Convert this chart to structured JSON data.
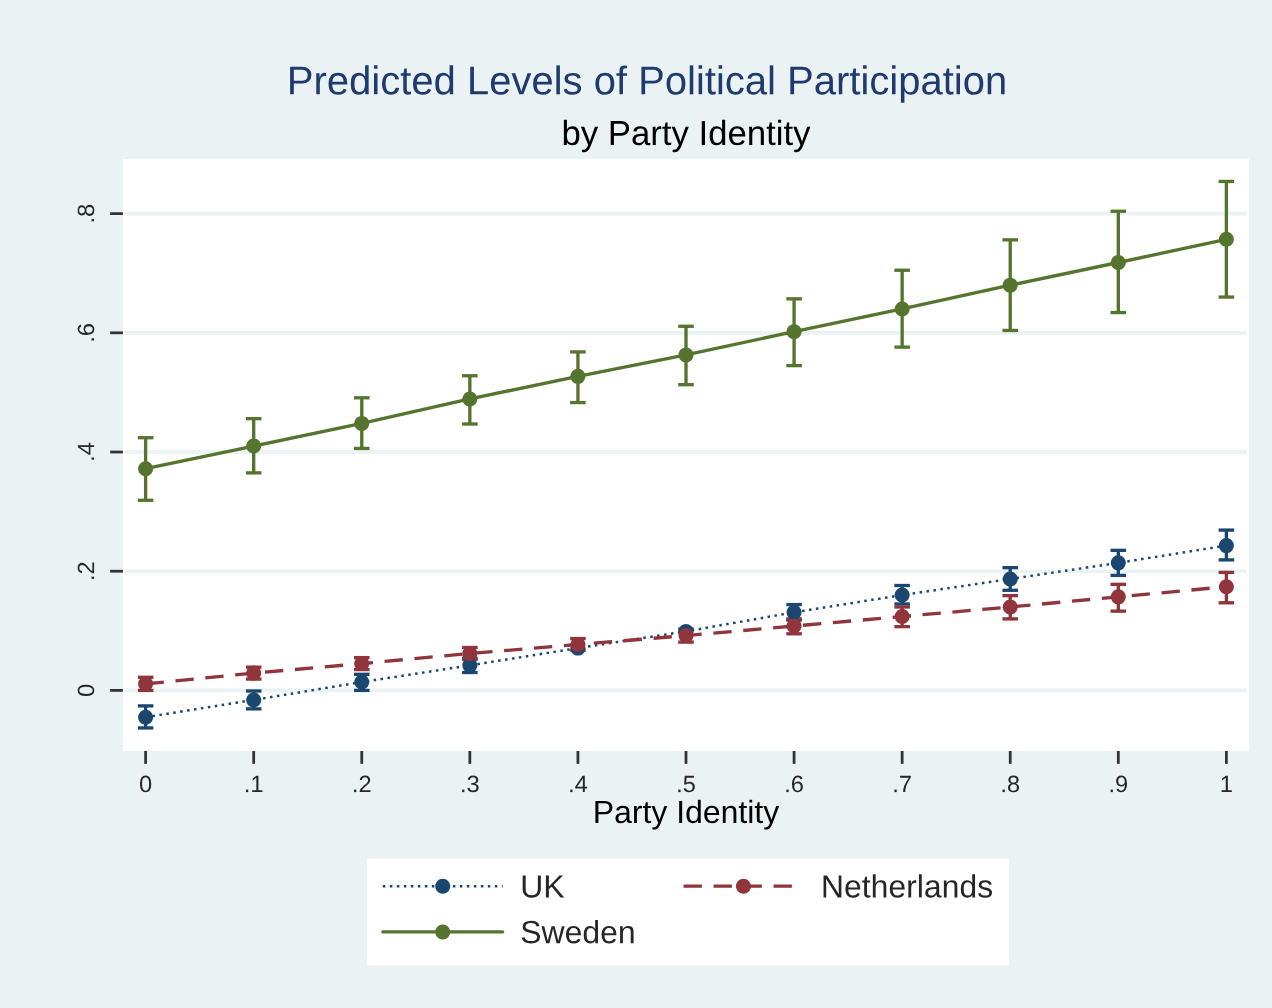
{
  "chart_data": {
    "type": "line",
    "title": "Predicted Levels of Political Participation",
    "subtitle": "by Party Identity",
    "xlabel": "Party Identity",
    "x": [
      0,
      0.1,
      0.2,
      0.3,
      0.4,
      0.5,
      0.6,
      0.7,
      0.8,
      0.9,
      1
    ],
    "series": [
      {
        "name": "UK",
        "color": "#1a476f",
        "line_style": "dotted",
        "values": [
          -0.045,
          -0.016,
          0.014,
          0.042,
          0.071,
          0.099,
          0.131,
          0.16,
          0.187,
          0.214,
          0.243
        ],
        "errors": [
          [
            -0.063,
            -0.026
          ],
          [
            -0.031,
            -0.001
          ],
          [
            0.0,
            0.027
          ],
          [
            0.03,
            0.054
          ],
          null,
          null,
          [
            0.118,
            0.144
          ],
          [
            0.145,
            0.176
          ],
          [
            0.168,
            0.206
          ],
          [
            0.193,
            0.235
          ],
          [
            0.219,
            0.269
          ]
        ]
      },
      {
        "name": "Netherlands",
        "color": "#90353b",
        "line_style": "dashed",
        "values": [
          0.011,
          0.029,
          0.045,
          0.062,
          0.077,
          0.092,
          0.108,
          0.124,
          0.14,
          0.157,
          0.174
        ],
        "errors": [
          [
            0.0,
            0.022
          ],
          [
            0.019,
            0.039
          ],
          [
            0.035,
            0.055
          ],
          [
            0.052,
            0.072
          ],
          [
            0.067,
            0.087
          ],
          [
            0.081,
            0.103
          ],
          [
            0.095,
            0.12
          ],
          [
            0.107,
            0.14
          ],
          [
            0.12,
            0.159
          ],
          [
            0.133,
            0.178
          ],
          [
            0.147,
            0.198
          ]
        ]
      },
      {
        "name": "Sweden",
        "color": "#55752f",
        "line_style": "solid",
        "values": [
          0.372,
          0.41,
          0.448,
          0.489,
          0.527,
          0.563,
          0.602,
          0.64,
          0.68,
          0.718,
          0.757
        ],
        "errors": [
          [
            0.319,
            0.424
          ],
          [
            0.365,
            0.456
          ],
          [
            0.406,
            0.491
          ],
          [
            0.447,
            0.528
          ],
          [
            0.483,
            0.568
          ],
          [
            0.513,
            0.611
          ],
          [
            0.545,
            0.657
          ],
          [
            0.576,
            0.705
          ],
          [
            0.604,
            0.756
          ],
          [
            0.634,
            0.804
          ],
          [
            0.66,
            0.854
          ]
        ]
      }
    ],
    "marker": "circle",
    "xlim": [
      -0.02,
      1.02
    ],
    "xticks": [
      0,
      {
        "value": 0.1,
        "label": ".1"
      },
      {
        "value": 0.2,
        "label": ".2"
      },
      {
        "value": 0.3,
        "label": ".3"
      },
      {
        "value": 0.4,
        "label": ".4"
      },
      {
        "value": 0.5,
        "label": ".5"
      },
      {
        "value": 0.6,
        "label": ".6"
      },
      {
        "value": 0.7,
        "label": ".7"
      },
      {
        "value": 0.8,
        "label": ".8"
      },
      {
        "value": 0.9,
        "label": ".9"
      },
      1
    ],
    "ylim": [
      -0.1,
      0.89
    ],
    "yticks": [
      0,
      {
        "value": 0.2,
        "label": ".2"
      },
      {
        "value": 0.4,
        "label": ".4"
      },
      {
        "value": 0.6,
        "label": ".6"
      },
      {
        "value": 0.8,
        "label": ".8"
      }
    ],
    "grid": "y",
    "legend": "bottom"
  }
}
